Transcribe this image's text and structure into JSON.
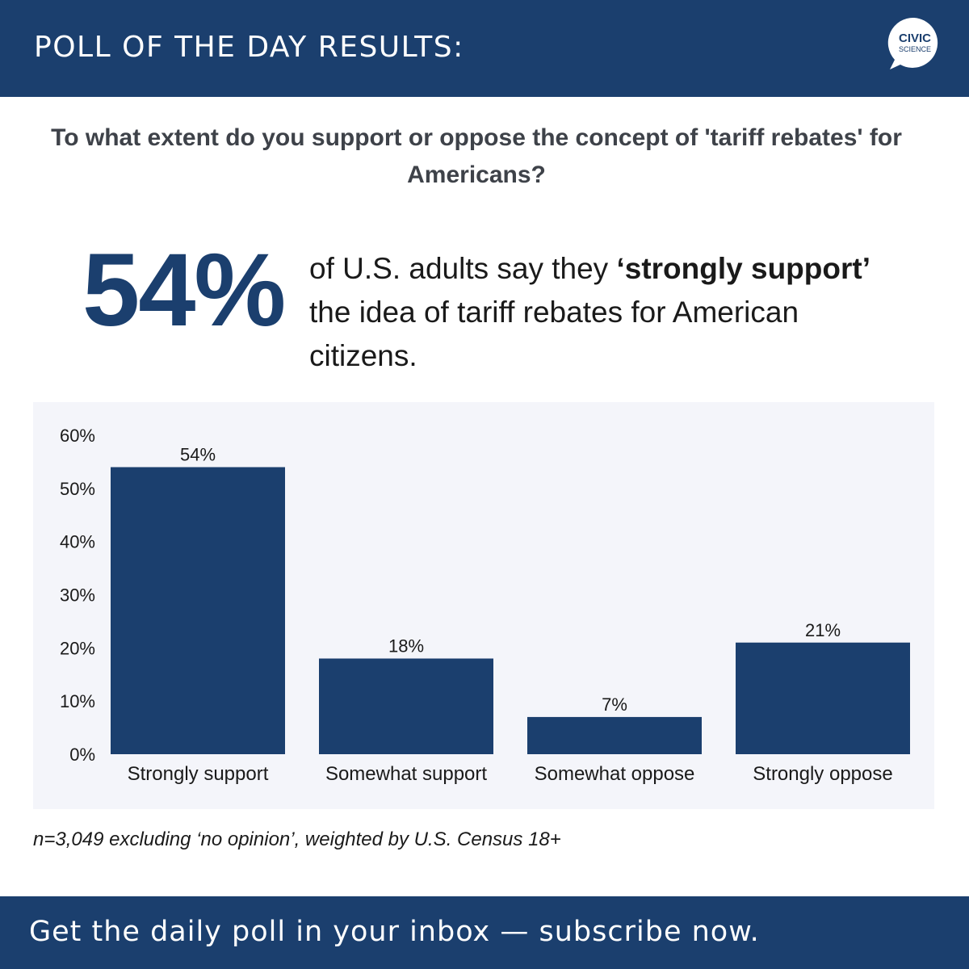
{
  "header": {
    "title": "POLL OF THE DAY RESULTS:",
    "logo_line1": "CIVIC",
    "logo_line2": "SCIENCE"
  },
  "question": "To what extent do you support or oppose the concept of 'tariff rebates' for Americans?",
  "highlight": {
    "value": "54%",
    "text_before": "of U.S. adults say they ",
    "text_bold": "‘strongly support’",
    "text_after": " the idea of tariff rebates for American citizens."
  },
  "chart_data": {
    "type": "bar",
    "categories": [
      "Strongly support",
      "Somewhat support",
      "Somewhat oppose",
      "Strongly oppose"
    ],
    "values": [
      54,
      18,
      7,
      21
    ],
    "value_labels": [
      "54%",
      "18%",
      "7%",
      "21%"
    ],
    "yticks": [
      0,
      10,
      20,
      30,
      40,
      50,
      60
    ],
    "ytick_labels": [
      "0%",
      "10%",
      "20%",
      "30%",
      "40%",
      "50%",
      "60%"
    ],
    "ylim": [
      0,
      60
    ],
    "title": "",
    "xlabel": "",
    "ylabel": "",
    "grid": false,
    "bar_color": "#1b3f6e"
  },
  "footnote": "n=3,049 excluding ‘no opinion’, weighted by U.S. Census 18+",
  "footer": {
    "cta": "Get the daily poll in your inbox — subscribe now."
  },
  "colors": {
    "brand": "#1b3f6e",
    "panel_bg": "#f4f5fa",
    "question_text": "#3e4249"
  }
}
